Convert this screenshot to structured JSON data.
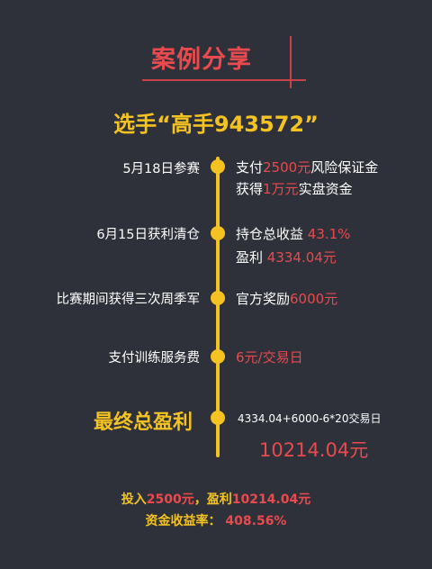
{
  "header": {
    "title": "案例分享"
  },
  "player": {
    "title": "选手“高手943572”"
  },
  "timeline": [
    {
      "label": "5月18日参赛",
      "lines": [
        {
          "pre": "支付",
          "highlight": "2500元",
          "post": "风险保证金"
        },
        {
          "pre": "获得",
          "highlight": "1万元",
          "post": "实盘资金"
        }
      ]
    },
    {
      "label": "6月15日获利清仓",
      "lines": [
        {
          "pre": "持仓总收益 ",
          "highlight": "43.1%",
          "post": ""
        },
        {
          "pre": "盈利 ",
          "highlight": "4334.04元",
          "post": ""
        }
      ]
    },
    {
      "label": "比赛期间获得三次周季军",
      "lines": [
        {
          "pre": "官方奖励",
          "highlight": "6000元",
          "post": ""
        }
      ]
    },
    {
      "label": "支付训练服务费",
      "lines": [
        {
          "pre": "",
          "highlight": "6元/交易日",
          "post": ""
        }
      ]
    }
  ],
  "final": {
    "label": "最终总盈利",
    "formula": "4334.04+6000-6*20交易日",
    "total": "10214.04元"
  },
  "summary": {
    "line1_a": "投入",
    "line1_b": "2500元",
    "line1_c": "，盈利",
    "line1_d": "10214.04元",
    "line2_a": "资金收益率：",
    "line2_b": " 408.56%"
  },
  "colors": {
    "background": "#2e3139",
    "accent_yellow": "#f4c321",
    "accent_red": "#e84a4e"
  }
}
